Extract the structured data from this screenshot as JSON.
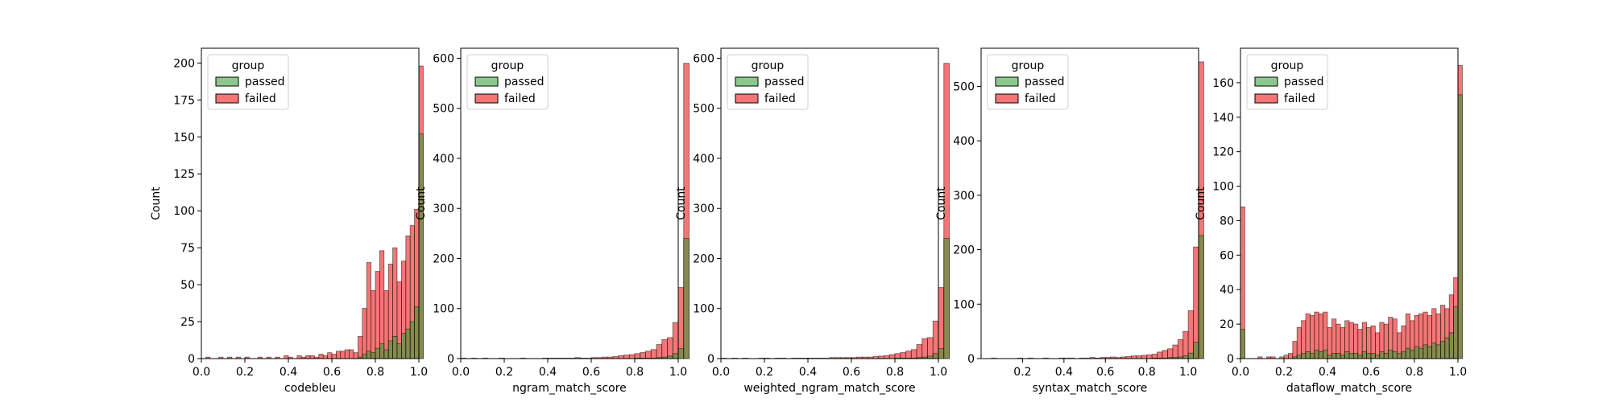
{
  "colors": {
    "passed": "#2e9a2e",
    "failed": "#f03c3c"
  },
  "legend": {
    "title": "group",
    "entries": [
      "passed",
      "failed"
    ]
  },
  "chart_data": [
    {
      "type": "bar",
      "xlabel": "codebleu",
      "ylabel": "Count",
      "xlim": [
        0.0,
        1.0
      ],
      "ylim": [
        0,
        210
      ],
      "xticks": [
        "0.0",
        "0.2",
        "0.4",
        "0.6",
        "0.8",
        "1.0"
      ],
      "yticks": [
        "0",
        "25",
        "50",
        "75",
        "100",
        "125",
        "150",
        "175",
        "200"
      ],
      "bin_start": 0.0,
      "bin_width": 0.02,
      "series": [
        {
          "name": "failed",
          "values": [
            0,
            1,
            0,
            0,
            1,
            0,
            1,
            0,
            1,
            0,
            1,
            0,
            0,
            1,
            0,
            1,
            0,
            1,
            0,
            2,
            1,
            0,
            2,
            1,
            2,
            2,
            1,
            3,
            2,
            4,
            3,
            5,
            5,
            6,
            6,
            4,
            15,
            34,
            65,
            46,
            59,
            73,
            46,
            64,
            75,
            52,
            66,
            83,
            90,
            101,
            198
          ]
        },
        {
          "name": "passed",
          "values": [
            0,
            0,
            0,
            0,
            0,
            0,
            0,
            0,
            0,
            0,
            0,
            0,
            0,
            0,
            0,
            0,
            0,
            0,
            0,
            0,
            0,
            0,
            0,
            0,
            0,
            0,
            0,
            0,
            0,
            0,
            0,
            0,
            0,
            0,
            0,
            0,
            1,
            3,
            5,
            4,
            7,
            10,
            6,
            12,
            15,
            10,
            17,
            20,
            25,
            35,
            152
          ]
        }
      ]
    },
    {
      "type": "bar",
      "xlabel": "ngram_match_score",
      "ylabel": "Count",
      "xlim": [
        0.0,
        1.0
      ],
      "ylim": [
        0,
        620
      ],
      "xticks": [
        "0.0",
        "0.2",
        "0.4",
        "0.6",
        "0.8",
        "1.0"
      ],
      "yticks": [
        "0",
        "100",
        "200",
        "300",
        "400",
        "500",
        "600"
      ],
      "bin_start": 0.0,
      "bin_width": 0.025,
      "series": [
        {
          "name": "failed",
          "values": [
            1,
            0,
            1,
            0,
            1,
            0,
            0,
            1,
            0,
            0,
            0,
            1,
            0,
            0,
            0,
            1,
            1,
            1,
            1,
            1,
            1,
            2,
            1,
            1,
            2,
            2,
            3,
            3,
            4,
            6,
            7,
            8,
            10,
            12,
            15,
            18,
            28,
            38,
            42,
            72,
            142,
            590
          ]
        },
        {
          "name": "passed",
          "values": [
            0,
            0,
            0,
            0,
            0,
            0,
            0,
            0,
            0,
            0,
            0,
            0,
            0,
            0,
            0,
            0,
            0,
            0,
            0,
            0,
            0,
            0,
            0,
            0,
            0,
            0,
            0,
            0,
            0,
            0,
            0,
            0,
            1,
            1,
            1,
            1,
            2,
            3,
            5,
            10,
            20,
            240
          ]
        }
      ]
    },
    {
      "type": "bar",
      "xlabel": "weighted_ngram_match_score",
      "ylabel": "Count",
      "xlim": [
        0.0,
        1.0
      ],
      "ylim": [
        0,
        620
      ],
      "xticks": [
        "0.0",
        "0.2",
        "0.4",
        "0.6",
        "0.8",
        "1.0"
      ],
      "yticks": [
        "0",
        "100",
        "200",
        "300",
        "400",
        "500",
        "600"
      ],
      "bin_start": 0.0,
      "bin_width": 0.025,
      "series": [
        {
          "name": "failed",
          "values": [
            1,
            0,
            1,
            0,
            1,
            0,
            0,
            1,
            1,
            0,
            1,
            1,
            0,
            1,
            1,
            1,
            1,
            1,
            1,
            1,
            2,
            2,
            2,
            2,
            2,
            3,
            3,
            3,
            4,
            5,
            6,
            8,
            10,
            12,
            15,
            18,
            28,
            40,
            42,
            75,
            142,
            590
          ]
        },
        {
          "name": "passed",
          "values": [
            0,
            0,
            0,
            0,
            0,
            0,
            0,
            0,
            0,
            0,
            0,
            0,
            0,
            0,
            0,
            0,
            0,
            0,
            0,
            0,
            0,
            0,
            0,
            0,
            0,
            0,
            0,
            0,
            0,
            0,
            0,
            0,
            1,
            1,
            1,
            1,
            2,
            3,
            5,
            10,
            20,
            240
          ]
        }
      ]
    },
    {
      "type": "bar",
      "xlabel": "syntax_match_score",
      "ylabel": "Count",
      "xlim": [
        0.0,
        1.05
      ],
      "ylim": [
        0,
        570
      ],
      "xticks": [
        "0.2",
        "0.4",
        "0.6",
        "0.8",
        "1.0"
      ],
      "yticks": [
        "0",
        "100",
        "200",
        "300",
        "400",
        "500"
      ],
      "bin_start": 0.05,
      "bin_width": 0.025,
      "series": [
        {
          "name": "failed",
          "values": [
            1,
            0,
            0,
            0,
            0,
            1,
            0,
            1,
            0,
            0,
            1,
            0,
            0,
            1,
            1,
            1,
            0,
            1,
            1,
            2,
            1,
            2,
            2,
            3,
            2,
            3,
            4,
            5,
            5,
            6,
            7,
            8,
            12,
            15,
            18,
            25,
            35,
            50,
            88,
            205,
            545
          ]
        },
        {
          "name": "passed",
          "values": [
            0,
            0,
            0,
            0,
            0,
            0,
            0,
            0,
            0,
            0,
            0,
            0,
            0,
            0,
            0,
            0,
            0,
            0,
            0,
            0,
            0,
            0,
            0,
            0,
            0,
            0,
            0,
            0,
            0,
            0,
            0,
            1,
            1,
            1,
            2,
            2,
            3,
            5,
            10,
            30,
            226
          ]
        }
      ]
    },
    {
      "type": "bar",
      "xlabel": "dataflow_match_score",
      "ylabel": "Count",
      "xlim": [
        0.0,
        1.0
      ],
      "ylim": [
        0,
        180
      ],
      "xticks": [
        "0.0",
        "0.2",
        "0.4",
        "0.6",
        "0.8",
        "1.0"
      ],
      "yticks": [
        "0",
        "20",
        "40",
        "60",
        "80",
        "100",
        "120",
        "140",
        "160"
      ],
      "bin_start": 0.0,
      "bin_width": 0.02,
      "series": [
        {
          "name": "failed",
          "values": [
            88,
            0,
            0,
            0,
            1,
            0,
            1,
            1,
            0,
            1,
            2,
            3,
            10,
            18,
            22,
            26,
            25,
            27,
            26,
            27,
            18,
            23,
            20,
            18,
            22,
            21,
            20,
            17,
            21,
            18,
            19,
            15,
            21,
            20,
            24,
            23,
            15,
            19,
            26,
            22,
            25,
            26,
            27,
            25,
            29,
            26,
            31,
            29,
            37,
            47,
            170
          ]
        },
        {
          "name": "passed",
          "values": [
            17,
            0,
            0,
            0,
            0,
            0,
            0,
            0,
            0,
            0,
            0,
            0,
            1,
            2,
            3,
            4,
            3,
            5,
            4,
            5,
            2,
            3,
            3,
            2,
            4,
            3,
            3,
            2,
            4,
            3,
            3,
            2,
            4,
            3,
            5,
            4,
            3,
            4,
            6,
            5,
            7,
            6,
            8,
            7,
            9,
            8,
            10,
            12,
            15,
            30,
            153
          ]
        }
      ]
    }
  ]
}
